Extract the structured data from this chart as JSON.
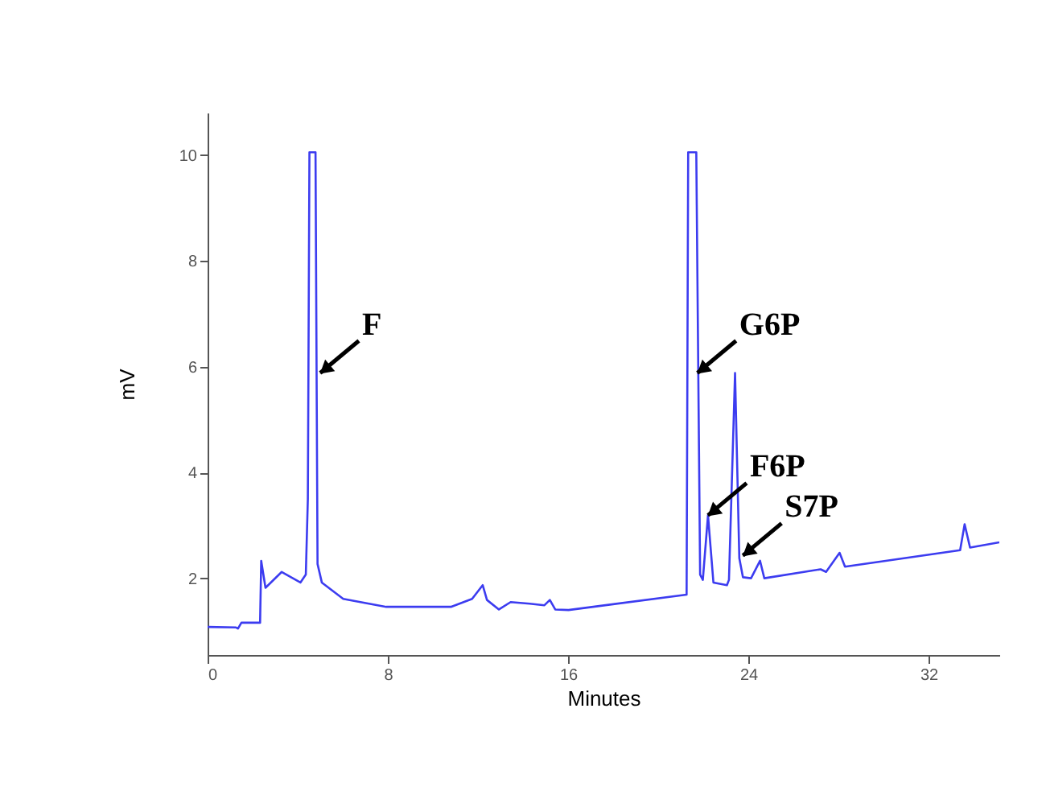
{
  "chart_data": {
    "type": "line",
    "xlabel": "Minutes",
    "ylabel": "mV",
    "x": [
      0,
      1.26,
      1.35,
      1.5,
      2.33,
      2.38,
      2.57,
      3.29,
      4.12,
      4.36,
      4.45,
      4.52,
      4.79,
      4.88,
      5.07,
      6.02,
      7.93,
      10.8,
      11.74,
      12.21,
      12.4,
      12.93,
      13.45,
      14.3,
      14.95,
      15.19,
      15.43,
      16.02,
      21.26,
      21.33,
      21.69,
      21.86,
      21.98,
      22.21,
      22.45,
      23.05,
      23.14,
      23.41,
      23.6,
      23.76,
      24.12,
      24.52,
      24.71,
      27.21,
      27.45,
      28.05,
      28.29,
      33.4,
      33.6,
      33.84,
      35.14
    ],
    "series": [
      {
        "color": "#3c3cf0",
        "values": [
          1.08,
          1.07,
          1.05,
          1.16,
          1.16,
          2.33,
          1.82,
          2.12,
          1.92,
          2.07,
          3.5,
          10.05,
          10.05,
          2.27,
          1.92,
          1.61,
          1.46,
          1.46,
          1.61,
          1.87,
          1.59,
          1.41,
          1.55,
          1.52,
          1.49,
          1.59,
          1.41,
          1.4,
          1.69,
          10.05,
          10.05,
          2.07,
          1.97,
          3.19,
          1.92,
          1.87,
          1.97,
          5.88,
          2.38,
          2.02,
          2.0,
          2.33,
          2.0,
          2.17,
          2.12,
          2.48,
          2.22,
          2.53,
          3.02,
          2.58,
          2.68
        ]
      }
    ],
    "xlim": [
      0,
      35.14
    ],
    "xticks": [
      0,
      8,
      16,
      24,
      32
    ],
    "ylim": [
      0.55,
      10.8
    ],
    "yticks": [
      2,
      4,
      6,
      8,
      10
    ],
    "grid": false,
    "marker": "none",
    "line_style": "solid",
    "annotations": [
      {
        "text": "F",
        "x": 5.0,
        "y": 5.88
      },
      {
        "text": "G6P",
        "x": 21.74,
        "y": 5.88
      },
      {
        "text": "F6P",
        "x": 22.21,
        "y": 3.19
      },
      {
        "text": "S7P",
        "x": 23.76,
        "y": 2.43
      }
    ]
  }
}
